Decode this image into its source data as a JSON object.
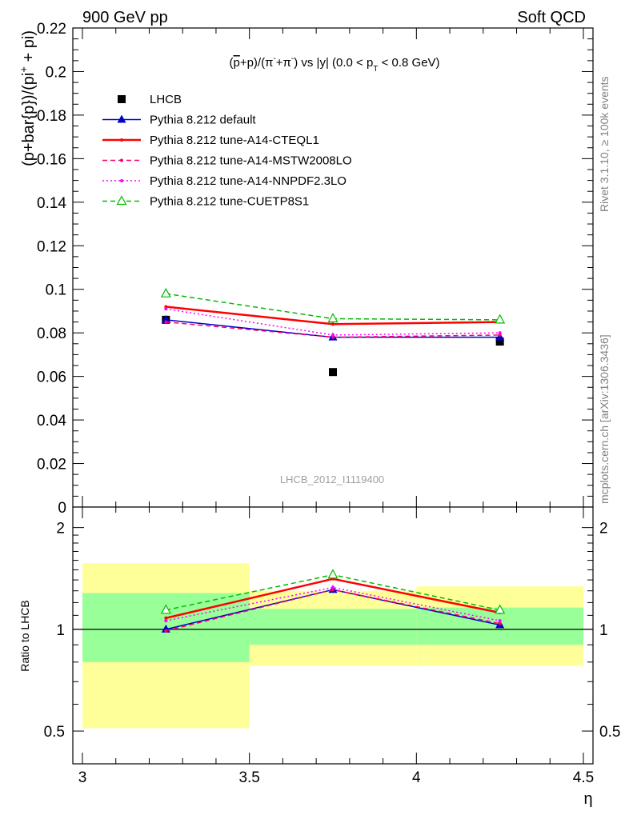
{
  "header": {
    "left": "900 GeV pp",
    "right": "Soft QCD"
  },
  "side_labels": {
    "top": "Rivet 3.1.10, ≥ 100k events",
    "bottom": "mcplots.cern.ch [arXiv:1306.3436]"
  },
  "watermark": "LHCB_2012_I1119400",
  "chart_data": [
    {
      "type": "line",
      "panel": "main",
      "title": "(p̄+p)/(π⁻+π⁻) vs |y| (0.0 < p_T < 0.8 GeV)",
      "ylabel": "(p+bar{p})/(pi⁺ + pi)",
      "xlim": [
        3.0,
        4.5
      ],
      "ylim": [
        0,
        0.22
      ],
      "yticks": [
        0,
        0.02,
        0.04,
        0.06,
        0.08,
        0.1,
        0.12,
        0.14,
        0.16,
        0.18,
        0.2,
        0.22
      ],
      "ytick_labels": [
        "0",
        "0.02",
        "0.04",
        "0.06",
        "0.08",
        "0.1",
        "0.12",
        "0.14",
        "0.16",
        "0.18",
        "0.2",
        "0.22"
      ],
      "x": [
        3.25,
        3.75,
        4.25
      ],
      "series": [
        {
          "name": "LHCB",
          "values": [
            0.086,
            0.062,
            0.076
          ],
          "color": "#000000",
          "style": "data"
        },
        {
          "name": "Pythia 8.212 default",
          "values": [
            0.086,
            0.078,
            0.078
          ],
          "color": "#0000cc",
          "style": "solid-triangle"
        },
        {
          "name": "Pythia 8.212 tune-A14-CTEQL1",
          "values": [
            0.092,
            0.084,
            0.085
          ],
          "color": "#ff0000",
          "style": "solid-thick"
        },
        {
          "name": "Pythia 8.212 tune-A14-MSTW2008LO",
          "values": [
            0.085,
            0.078,
            0.079
          ],
          "color": "#ff0066",
          "style": "dashed"
        },
        {
          "name": "Pythia 8.212 tune-A14-NNPDF2.3LO",
          "values": [
            0.091,
            0.079,
            0.08
          ],
          "color": "#ff00ff",
          "style": "dotted"
        },
        {
          "name": "Pythia 8.212 tune-CUETP8S1",
          "values": [
            0.098,
            0.0865,
            0.086
          ],
          "color": "#00bb00",
          "style": "dashed-open-triangle"
        }
      ]
    },
    {
      "type": "line",
      "panel": "ratio",
      "ylabel": "Ratio to LHCB",
      "xlabel": "η",
      "xlim": [
        3.0,
        4.5
      ],
      "xticks": [
        3,
        3.5,
        4,
        4.5
      ],
      "xtick_labels": [
        "3",
        "3.5",
        "4",
        "4.5"
      ],
      "ylim": [
        0.4,
        2.3
      ],
      "scale": "log",
      "yticks": [
        0.5,
        1,
        2
      ],
      "ytick_labels": [
        "0.5",
        "1",
        "2"
      ],
      "bands": [
        {
          "x": [
            3.0,
            3.5
          ],
          "yellow": [
            0.51,
            1.57
          ],
          "green": [
            0.8,
            1.28
          ]
        },
        {
          "x": [
            3.5,
            4.0
          ],
          "yellow": [
            0.78,
            1.3
          ],
          "green": [
            0.9,
            1.15
          ]
        },
        {
          "x": [
            4.0,
            4.5
          ],
          "yellow": [
            0.78,
            1.34
          ],
          "green": [
            0.9,
            1.16
          ]
        }
      ],
      "x": [
        3.25,
        3.75,
        4.25
      ],
      "series": [
        {
          "name": "Pythia 8.212 default",
          "values": [
            1.0,
            1.31,
            1.03
          ],
          "color": "#0000cc",
          "style": "solid-triangle"
        },
        {
          "name": "Pythia 8.212 tune-A14-CTEQL1",
          "values": [
            1.08,
            1.41,
            1.12
          ],
          "color": "#ff0000",
          "style": "solid-thick"
        },
        {
          "name": "Pythia 8.212 tune-A14-MSTW2008LO",
          "values": [
            0.99,
            1.31,
            1.04
          ],
          "color": "#ff0066",
          "style": "dashed"
        },
        {
          "name": "Pythia 8.212 tune-A14-NNPDF2.3LO",
          "values": [
            1.06,
            1.33,
            1.06
          ],
          "color": "#ff00ff",
          "style": "dotted"
        },
        {
          "name": "Pythia 8.212 tune-CUETP8S1",
          "values": [
            1.14,
            1.45,
            1.14
          ],
          "color": "#00bb00",
          "style": "dashed-open-triangle"
        }
      ]
    }
  ]
}
